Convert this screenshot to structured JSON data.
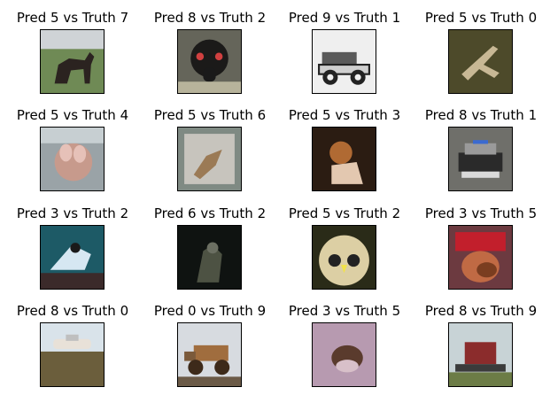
{
  "figure": {
    "panels": [
      {
        "title": "Pred 5 vs Truth 7",
        "image": "horse",
        "palette": [
          "#6f8a55",
          "#2b2320",
          "#cfd3d6"
        ]
      },
      {
        "title": "Pred 8 vs Truth 2",
        "image": "ostrich-head",
        "palette": [
          "#65655a",
          "#1b1a19",
          "#b7b39b"
        ]
      },
      {
        "title": "Pred 9 vs Truth 1",
        "image": "vintage-car",
        "palette": [
          "#efefef",
          "#5a5a5a",
          "#222222"
        ]
      },
      {
        "title": "Pred 5 vs Truth 0",
        "image": "airplane-on-ground",
        "palette": [
          "#4d4a2a",
          "#c8b895",
          "#2f2e1c"
        ]
      },
      {
        "title": "Pred 5 vs Truth 4",
        "image": "deer",
        "palette": [
          "#9aa3a7",
          "#c79a8c",
          "#7c6860"
        ]
      },
      {
        "title": "Pred 5 vs Truth 6",
        "image": "frog",
        "palette": [
          "#7f8a83",
          "#9b7a55",
          "#c7c4bd"
        ]
      },
      {
        "title": "Pred 5 vs Truth 3",
        "image": "cat",
        "palette": [
          "#2b1c12",
          "#b06a33",
          "#e3c8b0"
        ]
      },
      {
        "title": "Pred 8 vs Truth 1",
        "image": "police-car",
        "palette": [
          "#6f6f6a",
          "#dadada",
          "#2a2a2a"
        ]
      },
      {
        "title": "Pred 3 vs Truth 2",
        "image": "bird",
        "palette": [
          "#1d5a66",
          "#d6e7f2",
          "#3b2a2a"
        ]
      },
      {
        "title": "Pred 6 vs Truth 2",
        "image": "eagle",
        "palette": [
          "#0f1311",
          "#4d5243",
          "#2b2f26"
        ]
      },
      {
        "title": "Pred 5 vs Truth 2",
        "image": "owl",
        "palette": [
          "#2a2b18",
          "#dccfa4",
          "#f1e24a"
        ]
      },
      {
        "title": "Pred 3 vs Truth 5",
        "image": "dog-with-hat",
        "palette": [
          "#6c3a40",
          "#b34a3a",
          "#c06a44"
        ]
      },
      {
        "title": "Pred 8 vs Truth 0",
        "image": "airplane",
        "palette": [
          "#d9e3ea",
          "#6b5e3c",
          "#e8e1d8"
        ]
      },
      {
        "title": "Pred 0 vs Truth 9",
        "image": "dump-truck",
        "palette": [
          "#d7dbe0",
          "#a06d3e",
          "#3d2a1a"
        ]
      },
      {
        "title": "Pred 3 vs Truth 5",
        "image": "dog",
        "palette": [
          "#b79ab0",
          "#5a3b2d",
          "#d8c0c9"
        ]
      },
      {
        "title": "Pred 8 vs Truth 9",
        "image": "fire-truck",
        "palette": [
          "#c8d3d6",
          "#6c7c46",
          "#8b2c2c"
        ]
      }
    ]
  }
}
